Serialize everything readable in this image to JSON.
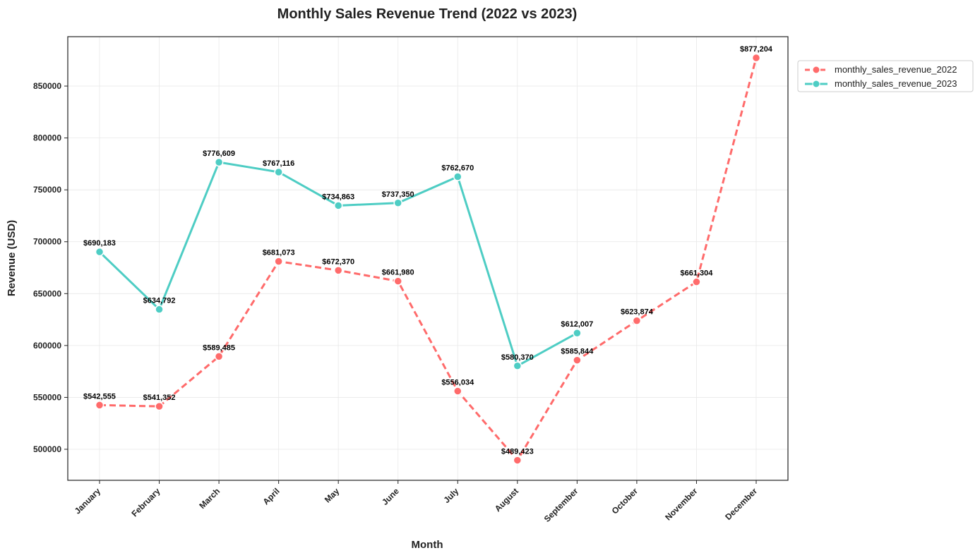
{
  "chart_data": {
    "type": "line",
    "title": "Monthly Sales Revenue Trend (2022 vs 2023)",
    "x_label": "Month",
    "y_label": "Revenue (USD)",
    "categories": [
      "January",
      "February",
      "March",
      "April",
      "May",
      "June",
      "July",
      "August",
      "September",
      "October",
      "November",
      "December"
    ],
    "series": [
      {
        "name": "monthly_sales_revenue_2022",
        "color": "#ff6b6b",
        "dash": true,
        "values": [
          542555,
          541352,
          589485,
          681073,
          672370,
          661980,
          556034,
          489423,
          585844,
          623874,
          661304,
          877204
        ],
        "value_labels": [
          "$542,555",
          "$541,352",
          "$589,485",
          "$681,073",
          "$672,370",
          "$661,980",
          "$556,034",
          "$489,423",
          "$585,844",
          "$623,874",
          "$661,304",
          "$877,204"
        ]
      },
      {
        "name": "monthly_sales_revenue_2023",
        "color": "#4ecdc4",
        "dash": false,
        "values": [
          690183,
          634792,
          776609,
          767116,
          734863,
          737350,
          762670,
          580370,
          612007,
          null,
          null,
          null
        ],
        "value_labels": [
          "$690,183",
          "$634,792",
          "$776,609",
          "$767,116",
          "$734,863",
          "$737,350",
          "$762,670",
          "$580,370",
          "$612,007",
          null,
          null,
          null
        ]
      }
    ],
    "ylim": [
      470100,
      897600
    ],
    "yticks": [
      500000,
      550000,
      600000,
      650000,
      700000,
      750000,
      800000,
      850000
    ],
    "grid": true,
    "legend": "outside-upper-right"
  }
}
